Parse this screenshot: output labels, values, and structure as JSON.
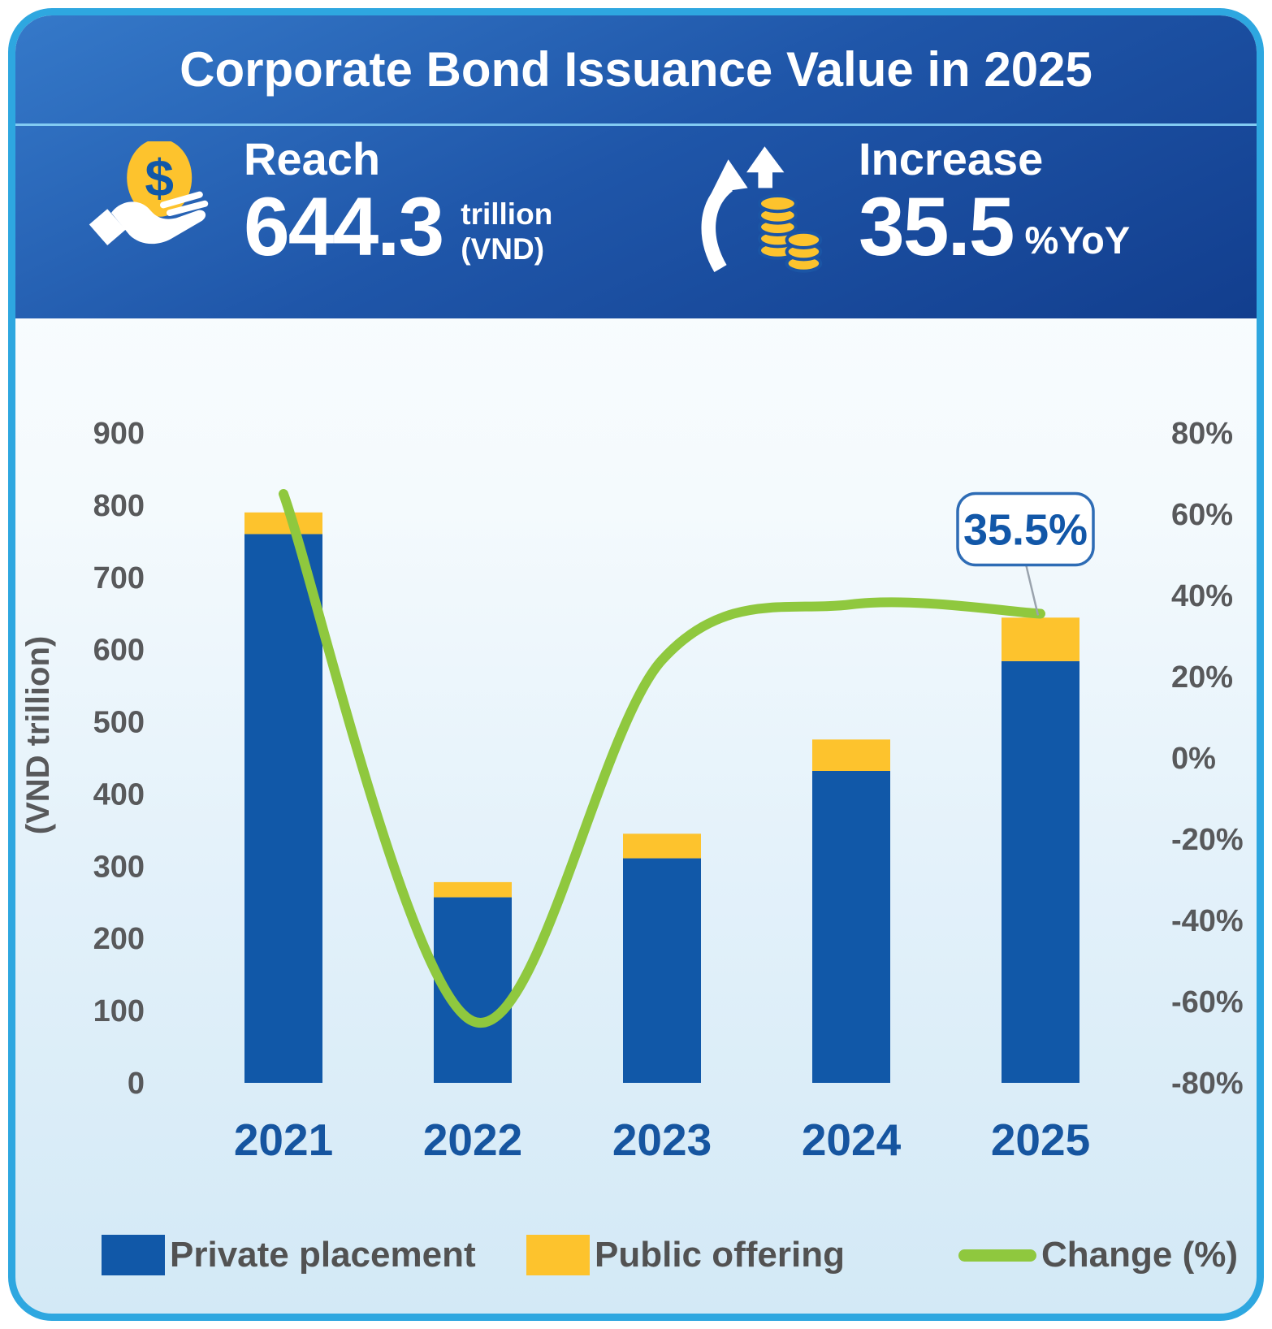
{
  "card": {
    "title": "Corporate Bond Issuance Value in 2025",
    "stats": [
      {
        "icon": "hand-coin-icon",
        "label": "Reach",
        "value": "644.3",
        "unit_lines": [
          "trillion",
          "(VND)"
        ]
      },
      {
        "icon": "arrows-up-coins-icon",
        "label": "Increase",
        "value": "35.5",
        "unit": "%YoY"
      }
    ]
  },
  "colors": {
    "card_border": "#2EA7E0",
    "header_blue_top": "#3579C9",
    "header_blue_bottom": "#123E8E",
    "divider_light_blue": "#82CBF2",
    "bar_blue": "#1158A8",
    "bar_yellow": "#FDC32D",
    "line_green": "#8FC83E",
    "tick_gray": "#58595B",
    "year_blue": "#1655A0",
    "callout_blue": "#1257A8",
    "callout_border": "#2E6CB5"
  },
  "chart_data": {
    "type": "bar",
    "subtype": "stacked-bar-with-line",
    "categories": [
      "2021",
      "2022",
      "2023",
      "2024",
      "2025"
    ],
    "series": [
      {
        "name": "Private placement",
        "type": "bar",
        "stack": true,
        "axis": "left",
        "color": "#1158A8",
        "values": [
          760,
          257,
          311,
          432,
          584
        ]
      },
      {
        "name": "Public offering",
        "type": "bar",
        "stack": true,
        "axis": "left",
        "color": "#FDC32D",
        "values": [
          30,
          21,
          34,
          43.5,
          60.3
        ]
      },
      {
        "name": "Change (%)",
        "type": "line",
        "axis": "right",
        "color": "#8FC83E",
        "values": [
          65,
          -64.8,
          24.1,
          37.8,
          35.5
        ]
      }
    ],
    "totals": [
      790,
      278,
      345,
      475.5,
      644.3
    ],
    "left_axis": {
      "title": "(VND trillion)",
      "min": 0,
      "max": 900,
      "step": 100,
      "ticks": [
        "0",
        "100",
        "200",
        "300",
        "400",
        "500",
        "600",
        "700",
        "800",
        "900"
      ]
    },
    "right_axis": {
      "min": -80,
      "max": 80,
      "step": 20,
      "suffix": "%",
      "ticks": [
        "80%",
        "60%",
        "40%",
        "20%",
        "0%",
        "-20%",
        "-40%",
        "-60%",
        "-80%"
      ]
    },
    "grid": false,
    "legend_position": "bottom",
    "annotation": {
      "text": "35.5%",
      "category": "2025"
    }
  }
}
